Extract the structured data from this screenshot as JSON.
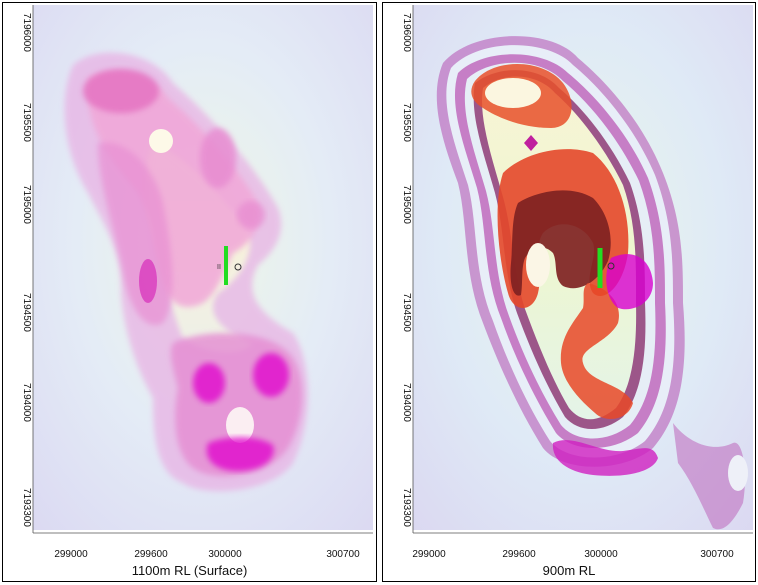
{
  "panels": [
    {
      "caption": "1100m RL (Surface)",
      "y_ticks": [
        "7196000",
        "7195500",
        "7195000",
        "7194500",
        "7194000",
        "7193300"
      ],
      "x_ticks": [
        "299000",
        "299600",
        "300000",
        "300700"
      ]
    },
    {
      "caption": "900m RL",
      "y_ticks": [
        "7196000",
        "7195500",
        "7195000",
        "7194500",
        "7194000",
        "7193300"
      ],
      "x_ticks": [
        "299000",
        "299600",
        "300000",
        "300700"
      ]
    }
  ],
  "colors": {
    "background_tint": "#dfe7f6",
    "high": "#ff4020",
    "very_high": "#8b2a22",
    "medium": "#ee6fc6",
    "low": "#c98ad8",
    "outlier": "#e000d0",
    "drillhole": "#22dd22",
    "center": "#fdfbe0"
  },
  "drillhole_marker": "green-drill-trace"
}
